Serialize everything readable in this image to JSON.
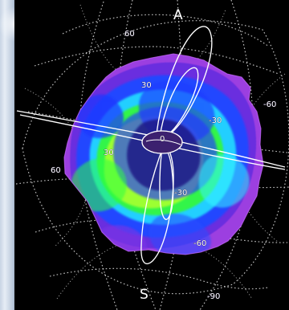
{
  "image": {
    "pole_top": "A",
    "pole_bottom": "S",
    "grid_labels": {
      "lat_60_north": "60",
      "lat_30_north": "30",
      "equator": "0",
      "lon_neg_60": "-60",
      "lon_neg_30": "-30",
      "lat_30_left": "30",
      "lat_60_left": "60",
      "lat_neg_30": "-30",
      "lat_neg_60": "-60",
      "lat_neg_90": "-90"
    }
  },
  "colors": {
    "background": "#000000",
    "outer_purple": "#9d40df",
    "violet": "#6430df",
    "blue": "#2648ff",
    "cyan": "#20d9ff",
    "green": "#38ff46",
    "lime": "#9fff32",
    "grid": "#d9d9d9",
    "overlay": "#ffffff"
  }
}
